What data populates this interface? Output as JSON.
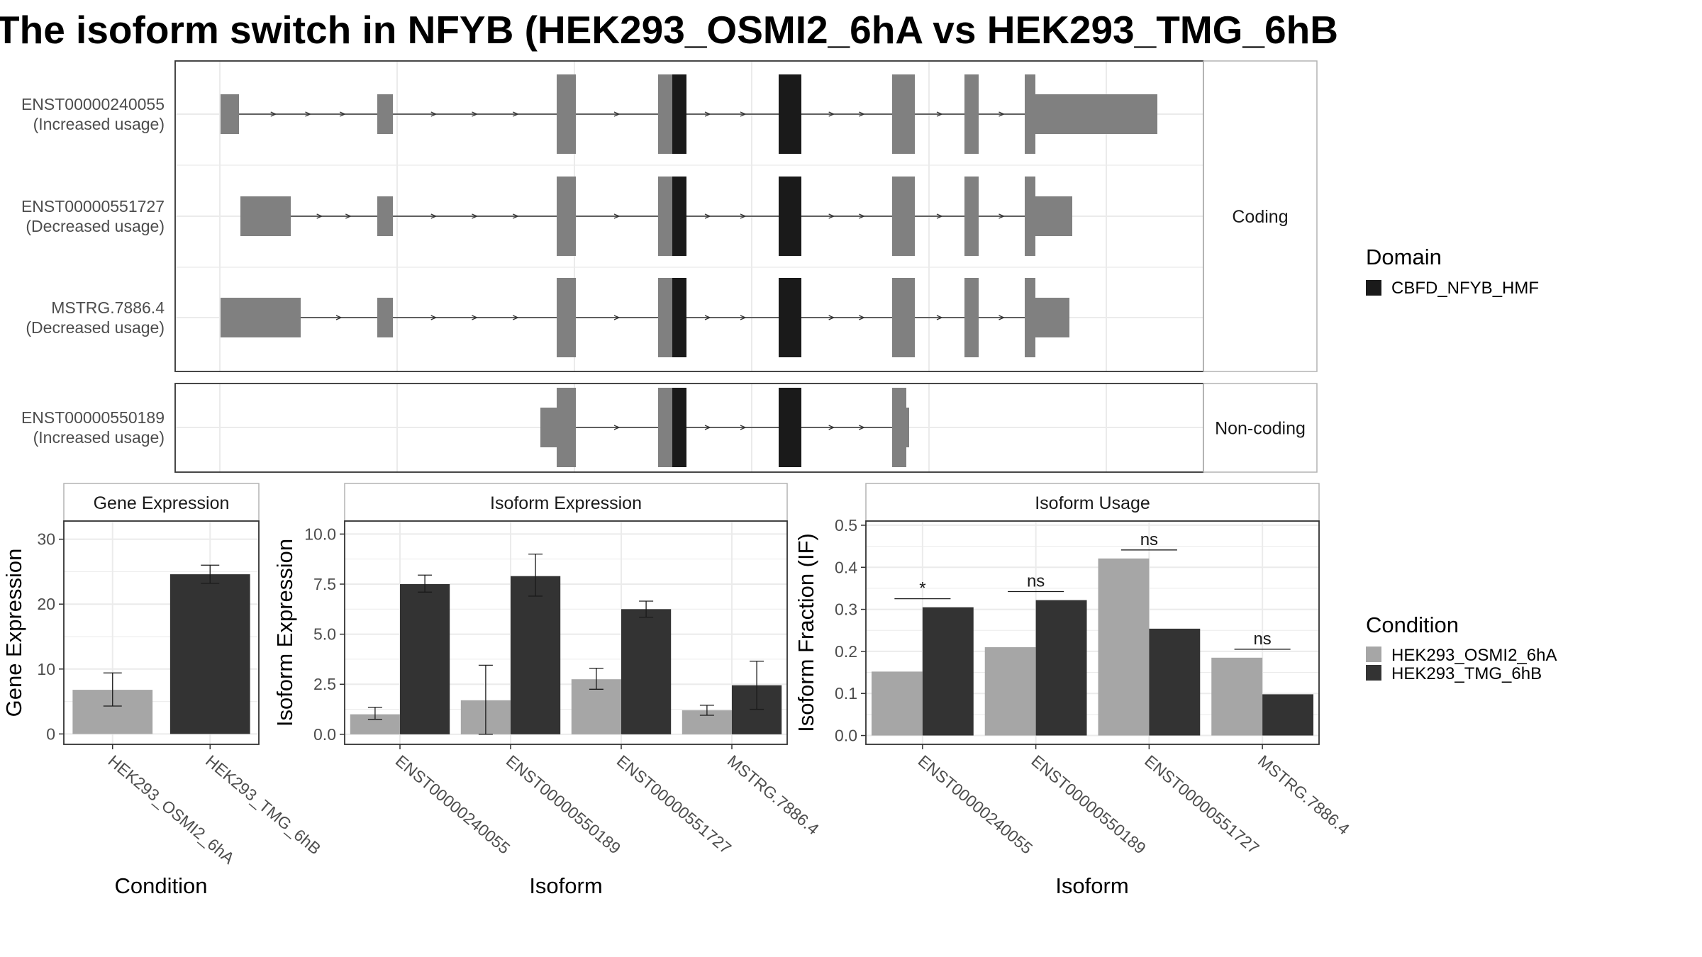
{
  "title": "The isoform switch in NFYB (HEK293_OSMI2_6hA vs HEK293_TMG_6hB",
  "colors": {
    "exon": "#808080",
    "domain": "#1a1a1a",
    "condition_a": "#a6a6a6",
    "condition_b": "#333333",
    "panel_border": "#333333",
    "strip_border": "#b3b3b3",
    "grid": "#ebebeb",
    "text": "#4d4d4d"
  },
  "structure": {
    "groups": [
      {
        "label": "Coding",
        "transcripts": [
          {
            "id": "ENST00000240055",
            "note": "(Increased usage)"
          },
          {
            "id": "ENST00000551727",
            "note": "(Decreased usage)"
          },
          {
            "id": "MSTRG.7886.4",
            "note": "(Decreased usage)"
          }
        ]
      },
      {
        "label": "Non-coding",
        "transcripts": [
          {
            "id": "ENST00000550189",
            "note": "(Increased usage)"
          }
        ]
      }
    ],
    "legend_title": "Domain",
    "legend_items": [
      {
        "label": "CBFD_NFYB_HMF",
        "color": "#1a1a1a"
      }
    ]
  },
  "condition_legend": {
    "title": "Condition",
    "items": [
      {
        "label": "HEK293_OSMI2_6hA",
        "color": "#a6a6a6"
      },
      {
        "label": "HEK293_TMG_6hB",
        "color": "#333333"
      }
    ]
  },
  "chart_data": [
    {
      "type": "bar",
      "title": "Gene Expression",
      "xlabel": "Condition",
      "ylabel": "Gene Expression",
      "categories": [
        "HEK293_OSMI2_6hA",
        "HEK293_TMG_6hB"
      ],
      "values": [
        6.8,
        24.6
      ],
      "error": [
        [
          4.3,
          9.4
        ],
        [
          23.2,
          26.0
        ]
      ],
      "ylim": [
        -1.6,
        32.8
      ],
      "yticks": [
        "0",
        "10",
        "20",
        "30"
      ],
      "grid": true
    },
    {
      "type": "bar",
      "title": "Isoform Expression",
      "xlabel": "Isoform",
      "ylabel": "Isoform Expression",
      "categories": [
        "ENST00000240055",
        "ENST00000550189",
        "ENST00000551727",
        "MSTRG.7886.4"
      ],
      "series": [
        {
          "name": "HEK293_OSMI2_6hA",
          "values": [
            1.0,
            1.7,
            2.75,
            1.2
          ],
          "error": [
            [
              0.75,
              1.35
            ],
            [
              0.0,
              3.45
            ],
            [
              2.25,
              3.3
            ],
            [
              0.95,
              1.45
            ]
          ]
        },
        {
          "name": "HEK293_TMG_6hB",
          "values": [
            7.5,
            7.9,
            6.25,
            2.45
          ],
          "error": [
            [
              7.1,
              7.95
            ],
            [
              6.9,
              9.0
            ],
            [
              5.85,
              6.65
            ],
            [
              1.25,
              3.65
            ]
          ]
        }
      ],
      "ylim": [
        -0.5,
        10.65
      ],
      "yticks": [
        "0.0",
        "2.5",
        "5.0",
        "7.5",
        "10.0"
      ],
      "grid": true
    },
    {
      "type": "bar",
      "title": "Isoform Usage",
      "xlabel": "Isoform",
      "ylabel": "Isoform Fraction (IF)",
      "categories": [
        "ENST00000240055",
        "ENST00000550189",
        "ENST00000551727",
        "MSTRG.7886.4"
      ],
      "series": [
        {
          "name": "HEK293_OSMI2_6hA",
          "values": [
            0.152,
            0.21,
            0.421,
            0.185
          ]
        },
        {
          "name": "HEK293_TMG_6hB",
          "values": [
            0.305,
            0.322,
            0.254,
            0.098
          ]
        }
      ],
      "significance": [
        "*",
        "ns",
        "ns",
        "ns"
      ],
      "ylim": [
        -0.021,
        0.51
      ],
      "yticks": [
        "0.0",
        "0.1",
        "0.2",
        "0.3",
        "0.4",
        "0.5"
      ],
      "grid": true
    }
  ]
}
